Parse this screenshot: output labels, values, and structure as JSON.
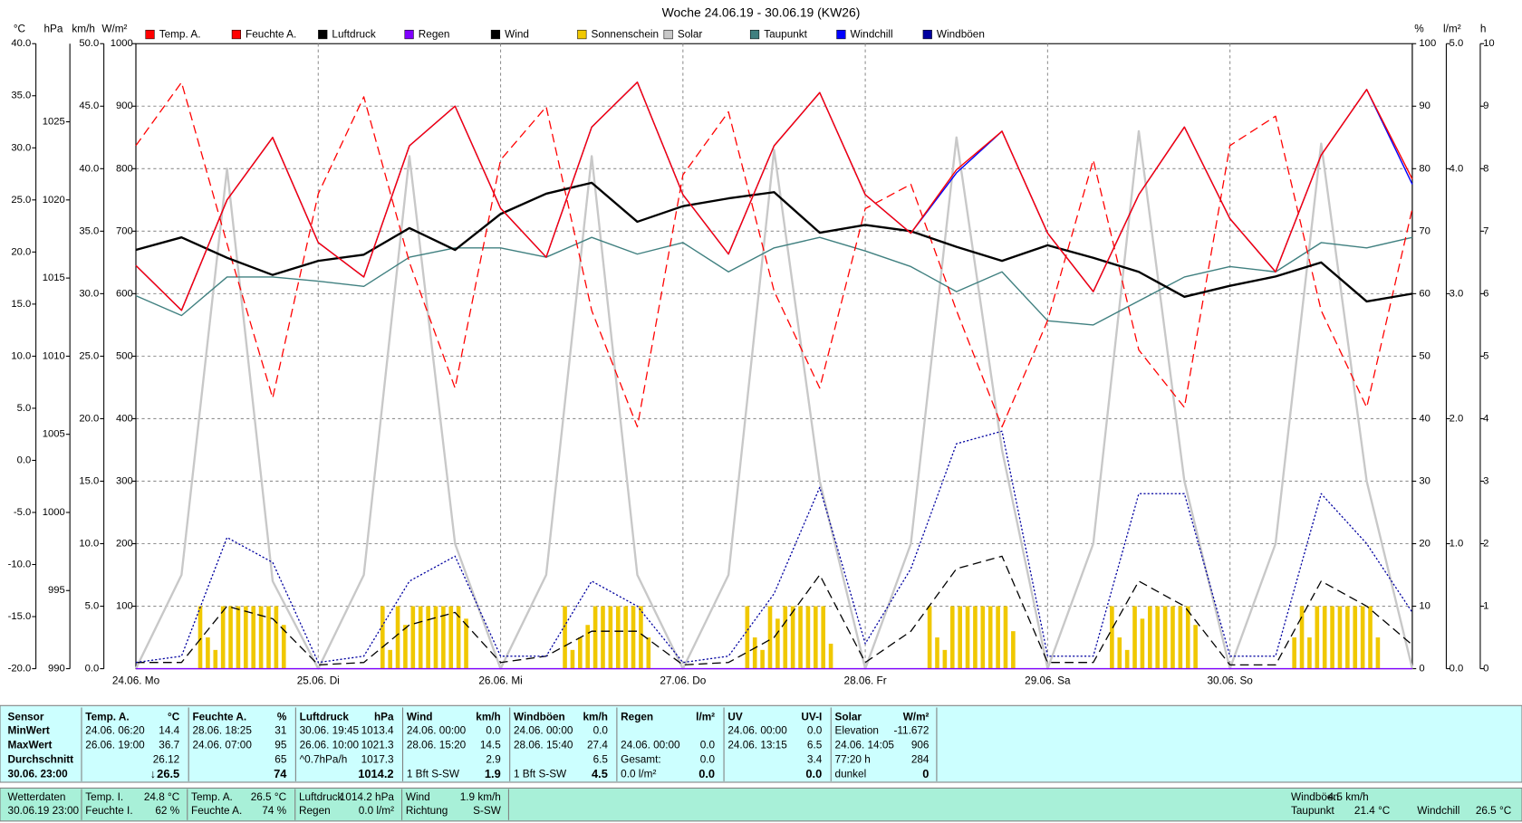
{
  "chart_data": {
    "type": "line",
    "title": "Woche 24.06.19 - 30.06.19 (KW26)",
    "x_labels": [
      "24.06. Mo",
      "25.06. Di",
      "26.06. Mi",
      "27.06. Do",
      "28.06. Fr",
      "29.06. Sa",
      "30.06. So"
    ],
    "grid": true,
    "grid_axis": "y3",
    "axes": {
      "y": {
        "unit": "°C",
        "color": "#e00000",
        "lim": [
          -20,
          40
        ],
        "ticks": [
          {
            "value": -20,
            "label": "-20.0"
          },
          {
            "value": -15,
            "label": "-15.0"
          },
          {
            "value": -10,
            "label": "-10.0"
          },
          {
            "value": -5,
            "label": "-5.0"
          },
          {
            "value": 0,
            "label": "0.0"
          },
          {
            "value": 5,
            "label": "5.0"
          },
          {
            "value": 10,
            "label": "10.0"
          },
          {
            "value": 15,
            "label": "15.0"
          },
          {
            "value": 20,
            "label": "20.0"
          },
          {
            "value": 25,
            "label": "25.0"
          },
          {
            "value": 30,
            "label": "30.0"
          },
          {
            "value": 35,
            "label": "35.0"
          },
          {
            "value": 40,
            "label": "40.0"
          }
        ]
      },
      "y2": {
        "unit": "hPa",
        "color": "#000000",
        "lim": [
          990,
          1030
        ],
        "ticks": [
          990,
          995,
          1000,
          1005,
          1010,
          1015,
          1020,
          1025
        ]
      },
      "y3": {
        "unit": "km/h",
        "color": "#000000",
        "lim": [
          0,
          50
        ],
        "ticks": [
          {
            "value": 0,
            "label": "0.0"
          },
          {
            "value": 5,
            "label": "5.0"
          },
          {
            "value": 10,
            "label": "10.0"
          },
          {
            "value": 15,
            "label": "15.0"
          },
          {
            "value": 20,
            "label": "20.0"
          },
          {
            "value": 25,
            "label": "25.0"
          },
          {
            "value": 30,
            "label": "30.0"
          },
          {
            "value": 35,
            "label": "35.0"
          },
          {
            "value": 40,
            "label": "40.0"
          },
          {
            "value": 45,
            "label": "45.0"
          },
          {
            "value": 50,
            "label": "50.0"
          }
        ]
      },
      "y4": {
        "unit": "W/m²",
        "color": "#c8c8c8",
        "lim": [
          0,
          1000
        ],
        "ticks": [
          100,
          200,
          300,
          400,
          500,
          600,
          700,
          800,
          900,
          1000
        ]
      },
      "y5": {
        "unit": "%",
        "color": "#e00000",
        "lim": [
          0,
          100
        ],
        "ticks": [
          0,
          10,
          20,
          30,
          40,
          50,
          60,
          70,
          80,
          90,
          100
        ]
      },
      "y6": {
        "unit": "l/m²",
        "color": "#8000ff",
        "lim": [
          0,
          5
        ],
        "ticks": [
          {
            "value": 0,
            "label": "0.0"
          },
          {
            "value": 1,
            "label": "1.0"
          },
          {
            "value": 2,
            "label": "2.0"
          },
          {
            "value": 3,
            "label": "3.0"
          },
          {
            "value": 4,
            "label": "4.0"
          },
          {
            "value": 5,
            "label": "5.0"
          }
        ]
      },
      "y7": {
        "unit": "h",
        "color": "#c8b400",
        "lim": [
          0,
          10
        ],
        "ticks": [
          0,
          1,
          2,
          3,
          4,
          5,
          6,
          7,
          8,
          9,
          10
        ]
      }
    },
    "series": [
      {
        "name": "Temp. A.",
        "color": "#ff0000",
        "axis": "y",
        "style": "solid",
        "values": [
          18.7,
          14.4,
          25,
          31,
          20.9,
          17.6,
          30.2,
          34,
          24.2,
          19.5,
          32,
          36.3,
          25.5,
          19.8,
          30.2,
          35.3,
          25.5,
          21.8,
          27.9,
          31.6,
          21.8,
          16.2,
          25.5,
          32,
          23.2,
          18.1,
          29.3,
          35.6,
          27
        ]
      },
      {
        "name": "Feuchte A.",
        "color": "#ff0000",
        "axis": "y5",
        "style": "dashed",
        "values": [
          83.7,
          93.8,
          68,
          43.3,
          76,
          91.5,
          65,
          44.9,
          81.4,
          89.9,
          57.3,
          38.7,
          79,
          89.1,
          60.4,
          44.9,
          73.6,
          77.5,
          57.3,
          38.7,
          55.7,
          81.4,
          51,
          41.8,
          83.7,
          88.4,
          57.3,
          41.8,
          73.6
        ]
      },
      {
        "name": "Luftdruck",
        "color": "#000000",
        "axis": "y2",
        "style": "thick",
        "values": [
          1016.8,
          1017.6,
          1016.3,
          1015.2,
          1016.1,
          1016.5,
          1018.2,
          1016.8,
          1019.1,
          1020.4,
          1021.1,
          1018.6,
          1019.6,
          1020.1,
          1020.5,
          1017.9,
          1018.4,
          1018,
          1017,
          1016.1,
          1017.1,
          1016.3,
          1015.4,
          1013.8,
          1014.5,
          1015.1,
          1016,
          1013.5,
          1014
        ]
      },
      {
        "name": "Regen",
        "color": "#8000ff",
        "axis": "y6",
        "style": "solid",
        "values": [
          0,
          0,
          0,
          0,
          0,
          0,
          0,
          0,
          0,
          0,
          0,
          0,
          0,
          0,
          0,
          0,
          0,
          0,
          0,
          0,
          0,
          0,
          0,
          0,
          0,
          0,
          0,
          0,
          0
        ]
      },
      {
        "name": "Wind",
        "color": "#000000",
        "axis": "y3",
        "style": "dashed",
        "values": [
          0.5,
          0.5,
          5,
          4,
          0.3,
          0.5,
          3.5,
          4.5,
          0.5,
          1,
          3,
          3,
          0.3,
          0.5,
          2.5,
          7.5,
          0.5,
          3,
          8,
          9,
          0.5,
          0.5,
          7,
          5,
          0.3,
          0.3,
          7,
          5,
          1.9
        ]
      },
      {
        "name": "Sonnenschein",
        "color": "#f0c800",
        "axis": "y7",
        "style": "bars",
        "values": [
          0,
          0,
          0,
          0,
          0,
          0,
          0,
          0,
          1,
          0.5,
          0.3,
          1,
          1,
          1,
          1,
          1,
          1,
          1,
          1,
          0.7,
          0,
          0,
          0,
          0,
          0,
          0,
          0,
          0,
          0,
          0,
          0,
          0,
          1,
          0.3,
          1,
          0.7,
          1,
          1,
          1,
          1,
          1,
          1,
          1,
          0.8,
          0,
          0,
          0,
          0,
          0,
          0,
          0,
          0,
          0,
          0,
          0,
          0,
          1,
          0.3,
          0.5,
          0.7,
          1,
          1,
          1,
          1,
          1,
          1,
          1,
          0.5,
          0,
          0,
          0,
          0,
          0,
          0,
          0,
          0,
          0,
          0,
          0,
          0,
          1,
          0.5,
          0.3,
          1,
          0.8,
          1,
          1,
          1,
          1,
          1,
          1,
          0.4,
          0,
          0,
          0,
          0,
          0,
          0,
          0,
          0,
          0,
          0,
          0,
          0,
          1,
          0.5,
          0.3,
          1,
          1,
          1,
          1,
          1,
          1,
          1,
          1,
          0.6,
          0,
          0,
          0,
          0,
          0,
          0,
          0,
          0,
          0,
          0,
          0,
          0,
          1,
          0.5,
          0.3,
          1,
          0.8,
          1,
          1,
          1,
          1,
          1,
          1,
          0.7,
          0,
          0,
          0,
          0,
          0,
          0,
          0,
          0,
          0,
          0,
          0,
          0,
          0.5,
          1,
          0.5,
          1,
          1,
          1,
          1,
          1,
          1,
          1,
          1,
          0.5,
          0,
          0,
          0,
          0
        ]
      },
      {
        "name": "Solar",
        "color": "#c8c8c8",
        "axis": "y4",
        "style": "thick",
        "values": [
          0,
          150,
          800,
          140,
          0,
          150,
          820,
          200,
          0,
          150,
          820,
          150,
          0,
          150,
          830,
          300,
          0,
          200,
          850,
          350,
          0,
          200,
          860,
          300,
          0,
          200,
          840,
          300,
          0
        ]
      },
      {
        "name": "Taupunkt",
        "color": "#408080",
        "axis": "y",
        "style": "solid",
        "values": [
          15.8,
          13.9,
          17.6,
          17.6,
          17.2,
          16.7,
          19.5,
          20.4,
          20.4,
          19.5,
          21.4,
          19.8,
          20.9,
          18.1,
          20.4,
          21.4,
          20.1,
          18.6,
          16.2,
          18.1,
          13.4,
          13,
          15.3,
          17.6,
          18.6,
          18.1,
          20.9,
          20.4,
          21.4
        ]
      },
      {
        "name": "Windchill",
        "color": "#0000ff",
        "axis": "y",
        "style": "solid",
        "values": [
          18.7,
          14.4,
          25,
          31,
          20.9,
          17.6,
          30.2,
          34,
          24.2,
          19.5,
          32,
          36.3,
          25.5,
          19.8,
          30.2,
          35.3,
          25.5,
          21.8,
          27.6,
          31.6,
          21.8,
          16.2,
          25.5,
          32,
          23.2,
          18.1,
          29.3,
          35.6,
          26.5
        ]
      },
      {
        "name": "Windböen",
        "color": "#0000a0",
        "axis": "y3",
        "style": "dotted",
        "values": [
          0.5,
          1,
          10.5,
          8.5,
          0.5,
          1,
          7,
          9,
          1,
          1,
          7,
          5,
          0.5,
          1,
          6,
          14.5,
          2,
          8,
          18,
          19,
          1,
          1,
          14,
          14,
          1,
          1,
          14,
          10,
          4.5
        ]
      }
    ]
  },
  "stats_table": {
    "row_labels": [
      "Sensor",
      "MinWert",
      "MaxWert",
      "Durchschnitt",
      "30.06. 23:00"
    ],
    "columns": [
      {
        "name": "Temp. A.",
        "unit": "°C",
        "cells": [
          {
            "t": "24.06. 06:20",
            "v": "14.4"
          },
          {
            "t": "26.06. 19:00",
            "v": "36.7"
          },
          {
            "v": "26.12"
          },
          {
            "trend": "↓",
            "v": "26.5"
          }
        ]
      },
      {
        "name": "Feuchte A.",
        "unit": "%",
        "cells": [
          {
            "t": "28.06. 18:25",
            "v": "31"
          },
          {
            "t": "24.06. 07:00",
            "v": "95"
          },
          {
            "v": "65"
          },
          {
            "v": "74"
          }
        ]
      },
      {
        "name": "Luftdruck",
        "unit": "hPa",
        "cells": [
          {
            "t": "30.06. 19:45",
            "v": "1013.4"
          },
          {
            "t": "26.06. 10:00",
            "v": "1021.3"
          },
          {
            "t": "^0.7hPa/h",
            "v": "1017.3"
          },
          {
            "v": "1014.2"
          }
        ]
      },
      {
        "name": "Wind",
        "unit": "km/h",
        "cells": [
          {
            "t": "24.06. 00:00",
            "v": "0.0"
          },
          {
            "t": "28.06. 15:20",
            "v": "14.5"
          },
          {
            "v": "2.9"
          },
          {
            "t": "1 Bft S-SW",
            "v": "1.9"
          }
        ]
      },
      {
        "name": "Windböen",
        "unit": "km/h",
        "cells": [
          {
            "t": "24.06. 00:00",
            "v": "0.0"
          },
          {
            "t": "28.06. 15:40",
            "v": "27.4"
          },
          {
            "v": "6.5"
          },
          {
            "t": "1 Bft S-SW",
            "v": "4.5"
          }
        ]
      },
      {
        "name": "Regen",
        "unit": "l/m²",
        "cells": [
          null,
          {
            "t": "24.06. 00:00",
            "v": "0.0"
          },
          {
            "t": "Gesamt:",
            "v": "0.0"
          },
          {
            "t": "0.0 l/m²",
            "v": "0.0"
          }
        ]
      },
      {
        "name": "UV",
        "unit": "UV-I",
        "cells": [
          {
            "t": "24.06. 00:00",
            "v": "0.0"
          },
          {
            "t": "24.06. 13:15",
            "v": "6.5"
          },
          {
            "v": "3.4"
          },
          {
            "v": "0.0"
          }
        ]
      },
      {
        "name": "Solar",
        "unit": "W/m²",
        "cells": [
          {
            "t": "Elevation",
            "v": "-11.672"
          },
          {
            "t": "24.06. 14:05",
            "v": "906"
          },
          {
            "t": "77:20 h",
            "v": "284"
          },
          {
            "t": "dunkel",
            "v": "0"
          }
        ]
      }
    ]
  },
  "status_bar": {
    "station": {
      "label": "Wetterdaten",
      "time": "30.06.19 23:00"
    },
    "items": [
      {
        "label": "Temp. I.",
        "value": "24.8 °C"
      },
      {
        "label": "Feuchte I.",
        "value": "62 %"
      },
      {
        "label": "Temp. A.",
        "value": "26.5 °C"
      },
      {
        "label": "Feuchte A.",
        "value": "74 %"
      },
      {
        "label": "Luftdruck",
        "value": "1014.2 hPa"
      },
      {
        "label": "Regen",
        "value": "0.0 l/m²"
      },
      {
        "label": "Wind",
        "value": "1.9 km/h"
      },
      {
        "label": "Richtung",
        "value": "S-SW"
      },
      {
        "label": "Windböen",
        "value": "4.5 km/h"
      },
      {
        "label": "Taupunkt",
        "value": "21.4 °C"
      },
      {
        "label": "Windchill",
        "value": "26.5 °C"
      }
    ]
  }
}
